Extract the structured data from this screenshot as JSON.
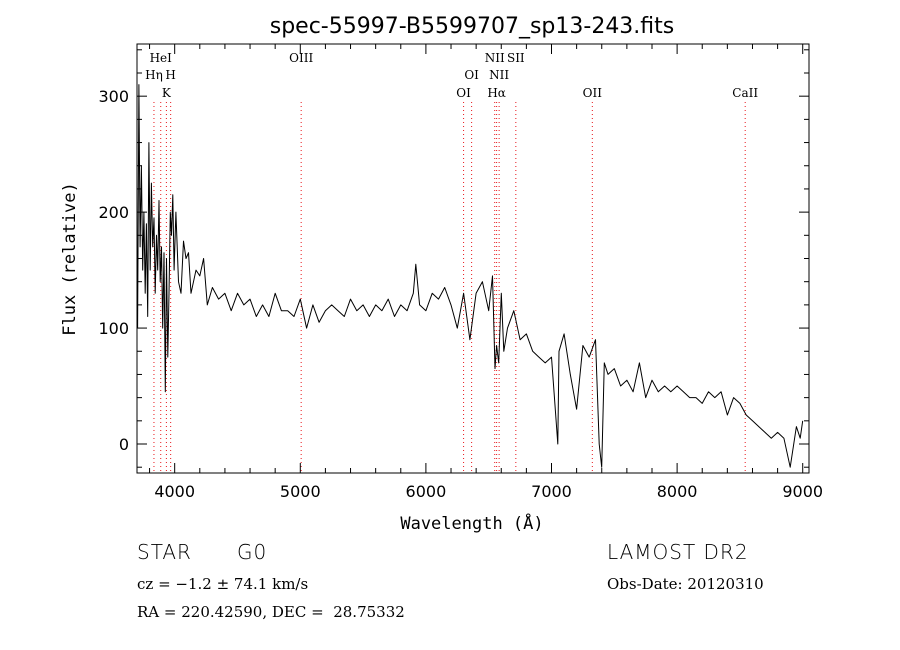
{
  "chart_data": {
    "type": "line",
    "title": "spec-55997-B5599707_sp13-243.fits",
    "xlabel": "Wavelength (Å)",
    "ylabel": "Flux (relative)",
    "xlim": [
      3700,
      9050
    ],
    "ylim": [
      -25,
      345
    ],
    "x_ticks": [
      4000,
      5000,
      6000,
      7000,
      8000,
      9000
    ],
    "y_ticks": [
      0,
      100,
      200,
      300
    ],
    "line_markers": [
      {
        "label": "HeI",
        "wavelength": 3889,
        "level": 0
      },
      {
        "label": "Hη",
        "wavelength": 3835,
        "level": 1
      },
      {
        "label": "H",
        "wavelength": 3968,
        "level": 1
      },
      {
        "label": "K",
        "wavelength": 3934,
        "level": 2
      },
      {
        "label": "OIII",
        "wavelength": 5007,
        "level": 0
      },
      {
        "label": "OI",
        "wavelength": 6364,
        "level": 1
      },
      {
        "label": "OI",
        "wavelength": 6300,
        "level": 2
      },
      {
        "label": "NII",
        "wavelength": 6548,
        "level": 0
      },
      {
        "label": "SII",
        "wavelength": 6716,
        "level": 0
      },
      {
        "label": "NII",
        "wavelength": 6583,
        "level": 1
      },
      {
        "label": "Hα",
        "wavelength": 6563,
        "level": 2
      },
      {
        "label": "OII",
        "wavelength": 7325,
        "level": 2
      },
      {
        "label": "CaII",
        "wavelength": 8542,
        "level": 2
      }
    ],
    "line_colors": {
      "spectrum": "#000000",
      "marker": "#e8161b"
    },
    "series": [
      {
        "name": "flux",
        "x": [
          3705,
          3715,
          3725,
          3735,
          3745,
          3755,
          3765,
          3775,
          3785,
          3795,
          3805,
          3815,
          3825,
          3835,
          3845,
          3855,
          3865,
          3875,
          3885,
          3895,
          3905,
          3915,
          3925,
          3935,
          3945,
          3955,
          3965,
          3975,
          3985,
          3995,
          4010,
          4030,
          4050,
          4070,
          4090,
          4110,
          4130,
          4150,
          4170,
          4200,
          4230,
          4260,
          4300,
          4350,
          4400,
          4450,
          4500,
          4550,
          4600,
          4650,
          4700,
          4750,
          4800,
          4850,
          4900,
          4950,
          5000,
          5050,
          5100,
          5150,
          5200,
          5250,
          5300,
          5350,
          5400,
          5450,
          5500,
          5550,
          5600,
          5650,
          5700,
          5750,
          5800,
          5850,
          5900,
          5920,
          5950,
          6000,
          6050,
          6100,
          6150,
          6200,
          6250,
          6300,
          6350,
          6400,
          6450,
          6500,
          6530,
          6550,
          6563,
          6580,
          6600,
          6620,
          6650,
          6700,
          6750,
          6800,
          6850,
          6900,
          6950,
          7000,
          7050,
          7060,
          7100,
          7150,
          7200,
          7250,
          7300,
          7350,
          7380,
          7400,
          7420,
          7450,
          7500,
          7550,
          7600,
          7650,
          7700,
          7750,
          7800,
          7850,
          7900,
          7950,
          8000,
          8050,
          8100,
          8150,
          8200,
          8250,
          8300,
          8350,
          8400,
          8450,
          8500,
          8550,
          8600,
          8650,
          8700,
          8750,
          8800,
          8850,
          8900,
          8950,
          8980,
          9000
        ],
        "y": [
          100,
          310,
          170,
          240,
          150,
          200,
          130,
          190,
          110,
          260,
          150,
          225,
          170,
          195,
          130,
          180,
          150,
          210,
          140,
          170,
          100,
          165,
          45,
          160,
          75,
          130,
          200,
          180,
          215,
          150,
          200,
          140,
          130,
          175,
          160,
          165,
          130,
          140,
          150,
          145,
          160,
          120,
          135,
          125,
          130,
          115,
          130,
          120,
          125,
          110,
          120,
          110,
          130,
          115,
          115,
          110,
          125,
          100,
          120,
          105,
          115,
          120,
          115,
          110,
          125,
          115,
          120,
          110,
          120,
          115,
          125,
          110,
          120,
          115,
          130,
          155,
          120,
          115,
          130,
          125,
          135,
          120,
          100,
          130,
          90,
          130,
          140,
          115,
          145,
          65,
          85,
          70,
          130,
          80,
          100,
          115,
          90,
          95,
          80,
          75,
          70,
          75,
          0,
          80,
          95,
          60,
          30,
          85,
          75,
          90,
          0,
          -20,
          70,
          60,
          65,
          50,
          55,
          45,
          70,
          40,
          55,
          45,
          50,
          45,
          50,
          45,
          40,
          40,
          35,
          45,
          40,
          45,
          25,
          40,
          35,
          25,
          20,
          15,
          10,
          5,
          10,
          5,
          -20,
          15,
          5,
          20
        ]
      }
    ]
  },
  "info": {
    "object_class": "STAR",
    "subclass": "G0",
    "survey": "LAMOST DR2",
    "cz": "cz = −1.2 ± 74.1 km/s",
    "obs_date": "Obs-Date: 20120310",
    "coords": "RA = 220.42590, DEC =  28.75332"
  }
}
